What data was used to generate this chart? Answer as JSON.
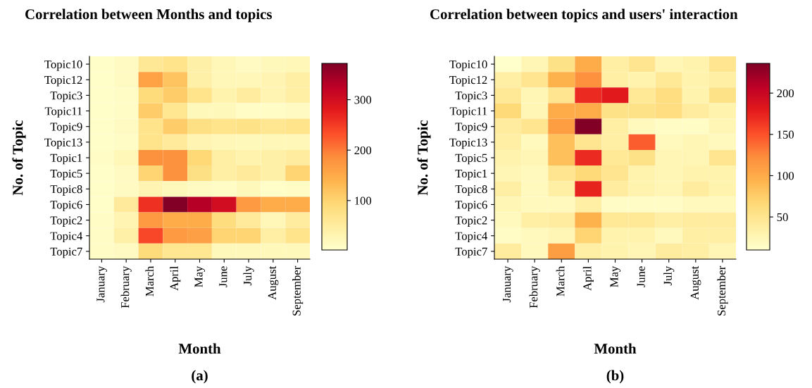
{
  "chart_data": [
    {
      "type": "heatmap",
      "title": "Correlation between Months and topics",
      "xlabel": "Month",
      "ylabel": "No. of Topic",
      "annotations": [
        "(a)"
      ],
      "categories": [
        "January",
        "February",
        "March",
        "April",
        "May",
        "June",
        "July",
        "August",
        "September"
      ],
      "y_categories": [
        "Topic10",
        "Topic12",
        "Topic3",
        "Topic11",
        "Topic9",
        "Topic13",
        "Topic1",
        "Topic5",
        "Topic8",
        "Topic6",
        "Topic2",
        "Topic4",
        "Topic7"
      ],
      "cells": [
        [
          5,
          15,
          60,
          70,
          40,
          25,
          15,
          20,
          25
        ],
        [
          5,
          15,
          160,
          120,
          40,
          25,
          25,
          30,
          45
        ],
        [
          5,
          10,
          90,
          110,
          70,
          35,
          50,
          30,
          45
        ],
        [
          5,
          10,
          110,
          65,
          20,
          20,
          10,
          10,
          15
        ],
        [
          5,
          15,
          70,
          110,
          80,
          70,
          75,
          65,
          70
        ],
        [
          5,
          10,
          70,
          55,
          30,
          25,
          20,
          25,
          25
        ],
        [
          10,
          25,
          180,
          180,
          95,
          45,
          35,
          40,
          50
        ],
        [
          5,
          15,
          100,
          180,
          80,
          45,
          55,
          40,
          100
        ],
        [
          5,
          15,
          30,
          20,
          15,
          10,
          20,
          5,
          10
        ],
        [
          5,
          55,
          260,
          370,
          330,
          300,
          170,
          150,
          150
        ],
        [
          10,
          30,
          170,
          150,
          150,
          85,
          55,
          25,
          50
        ],
        [
          10,
          40,
          240,
          170,
          165,
          100,
          100,
          45,
          70
        ],
        [
          10,
          15,
          90,
          65,
          65,
          20,
          20,
          20,
          20
        ]
      ],
      "clim": [
        2,
        372
      ],
      "cticks": [
        100,
        200,
        300
      ]
    },
    {
      "type": "heatmap",
      "title": "Correlation between topics and users' interaction",
      "xlabel": "Month",
      "ylabel": "No. of Topic",
      "annotations": [
        "(b)"
      ],
      "categories": [
        "January",
        "February",
        "March",
        "April",
        "May",
        "June",
        "July",
        "August",
        "September"
      ],
      "y_categories": [
        "Topic10",
        "Topic12",
        "Topic3",
        "Topic11",
        "Topic9",
        "Topic13",
        "Topic5",
        "Topic1",
        "Topic8",
        "Topic6",
        "Topic2",
        "Topic4",
        "Topic7"
      ],
      "cells": [
        [
          10,
          25,
          55,
          100,
          35,
          50,
          25,
          30,
          50
        ],
        [
          35,
          50,
          95,
          120,
          35,
          30,
          45,
          30,
          35
        ],
        [
          45,
          25,
          50,
          170,
          180,
          45,
          60,
          30,
          55
        ],
        [
          65,
          25,
          100,
          100,
          55,
          55,
          60,
          40,
          30
        ],
        [
          40,
          50,
          110,
          235,
          35,
          20,
          15,
          15,
          25
        ],
        [
          35,
          20,
          85,
          50,
          35,
          145,
          20,
          25,
          20
        ],
        [
          30,
          25,
          85,
          170,
          45,
          55,
          25,
          25,
          50
        ],
        [
          25,
          20,
          50,
          65,
          50,
          30,
          25,
          30,
          30
        ],
        [
          35,
          20,
          35,
          175,
          40,
          30,
          25,
          40,
          30
        ],
        [
          25,
          20,
          20,
          35,
          15,
          15,
          15,
          20,
          20
        ],
        [
          20,
          35,
          40,
          95,
          45,
          45,
          35,
          40,
          40
        ],
        [
          15,
          20,
          25,
          70,
          30,
          30,
          20,
          35,
          35
        ],
        [
          40,
          20,
          110,
          35,
          30,
          25,
          40,
          35,
          25
        ]
      ],
      "clim": [
        10,
        236
      ],
      "cticks": [
        50,
        100,
        150,
        200
      ]
    }
  ]
}
